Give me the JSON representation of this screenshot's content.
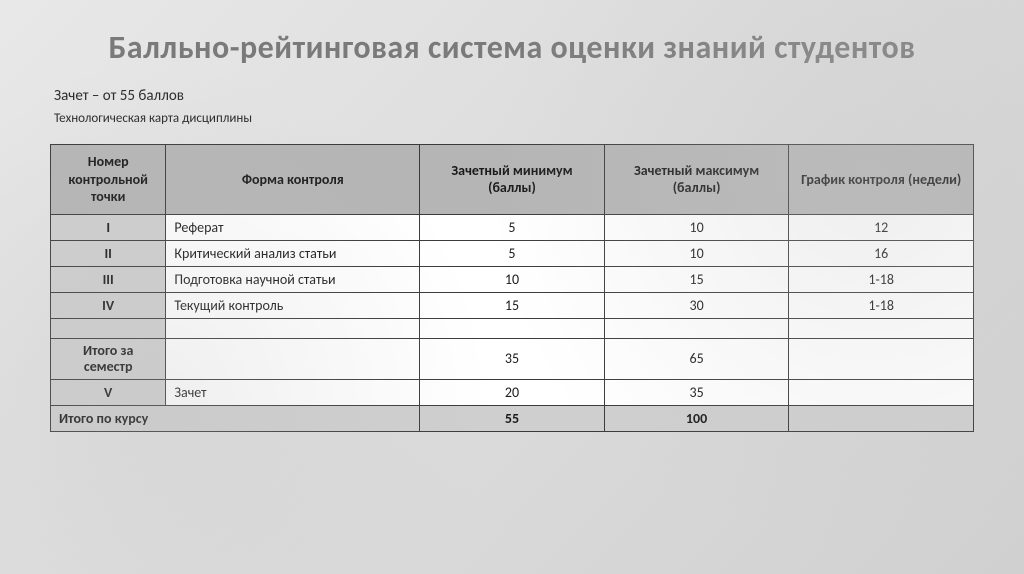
{
  "title": "Балльно-рейтинговая система оценки знаний студентов",
  "subtitle1": "Зачет – от 55 баллов",
  "subtitle2": "Технологическая карта дисциплины",
  "table": {
    "columns": [
      "Номер контрольной точки",
      "Форма контроля",
      "Зачетный минимум (баллы)",
      "Зачетный максимум (баллы)",
      "График контроля (недели)"
    ],
    "col_widths_pct": [
      12.5,
      27.5,
      20,
      20,
      20
    ],
    "header_bg": "#b5b5b5",
    "label_bg": "#cfcfcf",
    "cell_bg": "#ffffff",
    "border_color": "#3a3a3a",
    "font_size_pt": 14,
    "rows": [
      {
        "num": "I",
        "form": "Реферат",
        "min": "5",
        "max": "10",
        "sched": "12"
      },
      {
        "num": "II",
        "form": "Критический анализ статьи",
        "min": "5",
        "max": "10",
        "sched": "16"
      },
      {
        "num": "III",
        "form": "Подготовка научной статьи",
        "min": "10",
        "max": "15",
        "sched": "1-18"
      },
      {
        "num": "IV",
        "form": "Текущий контроль",
        "min": "15",
        "max": "30",
        "sched": "1-18"
      }
    ],
    "semester_total": {
      "label": "Итого за семестр",
      "min": "35",
      "max": "65"
    },
    "exam_row": {
      "num": "V",
      "form": "Зачет",
      "min": "20",
      "max": "35"
    },
    "course_total": {
      "label": "Итого по курсу",
      "min": "55",
      "max": "100"
    }
  }
}
